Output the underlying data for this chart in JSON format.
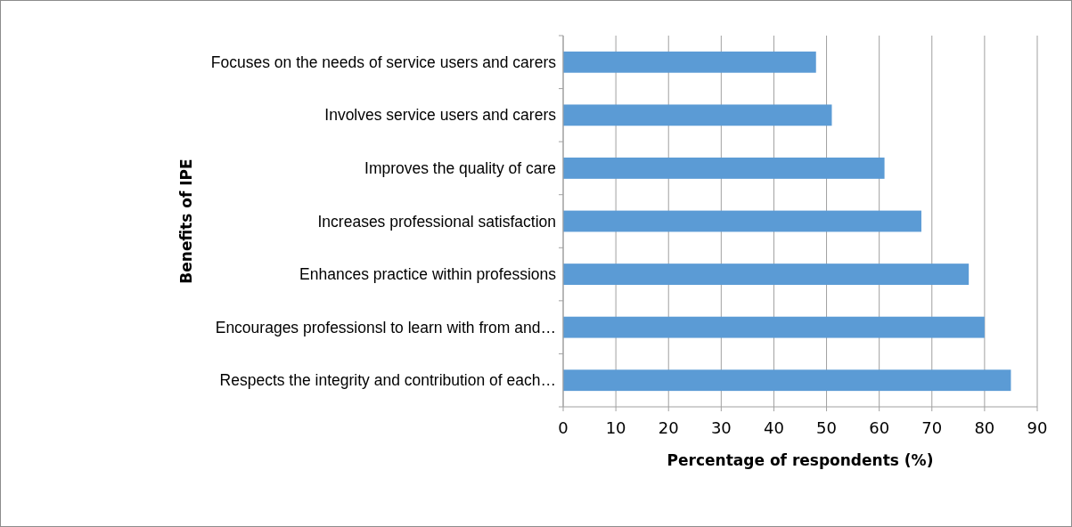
{
  "chart_data": {
    "type": "bar",
    "orientation": "horizontal",
    "xlabel": "Percentage of respondents (%)",
    "ylabel": "Benefits of IPE",
    "categories": [
      "Focuses on the needs of service users and carers",
      "Involves service users and carers",
      "Improves the quality of care",
      "Increases professional satisfaction",
      "Enhances practice within professions",
      "Encourages professionsl to learn with from and…",
      "Respects the integrity and contribution of each…"
    ],
    "values": [
      48,
      51,
      61,
      68,
      77,
      80,
      85
    ],
    "color": "#5b9bd5",
    "xlim": [
      0,
      90
    ],
    "xticks": [
      0,
      10,
      20,
      30,
      40,
      50,
      60,
      70,
      80,
      90
    ],
    "grid": "x"
  }
}
